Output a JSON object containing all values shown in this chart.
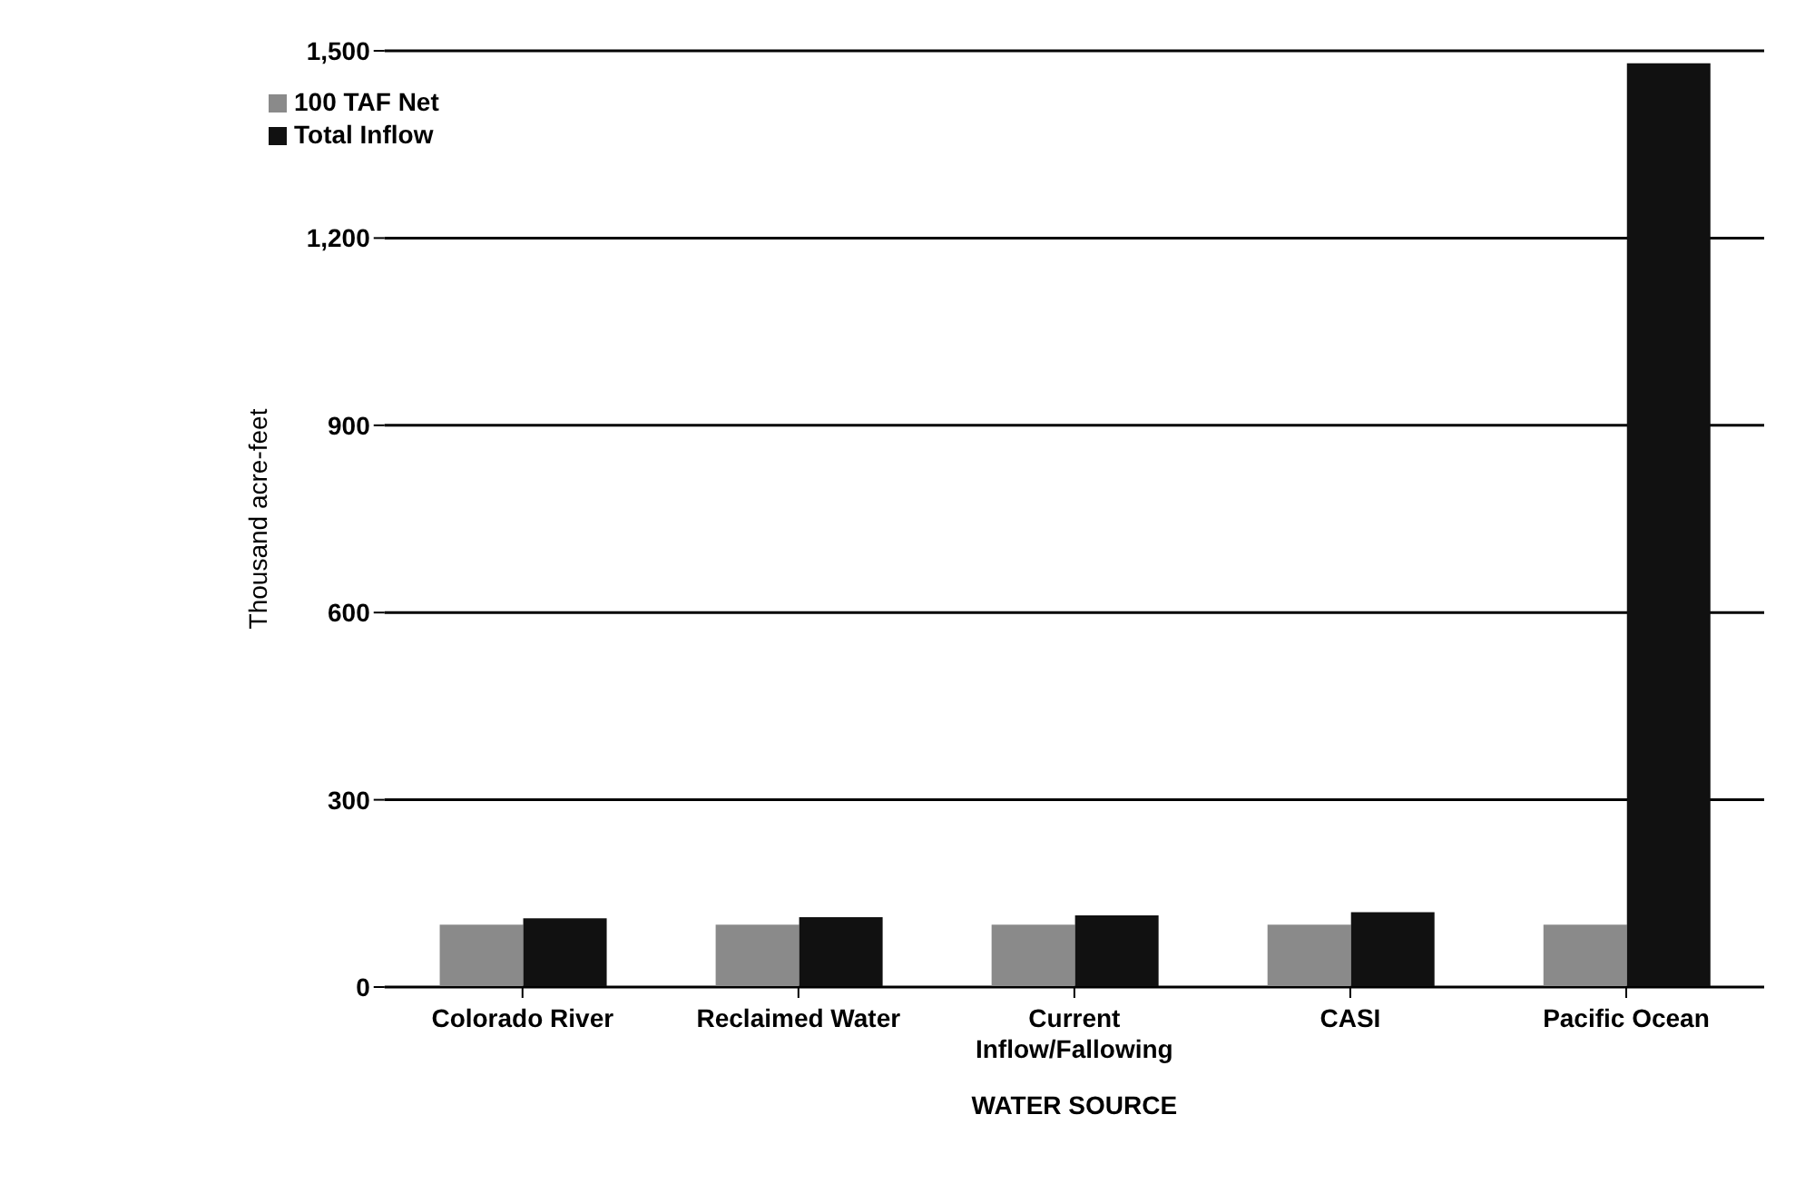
{
  "chart_data": {
    "type": "bar",
    "xlabel": "WATER SOURCE",
    "ylabel": "Thousand acre-feet",
    "categories": [
      "Colorado River",
      "Reclaimed Water",
      "Current Inflow/Fallowing",
      "CASI",
      "Pacific Ocean"
    ],
    "series": [
      {
        "name": "100 TAF Net",
        "color": "#8a8a8a",
        "values": [
          100,
          100,
          100,
          100,
          100
        ]
      },
      {
        "name": "Total Inflow",
        "color": "#111111",
        "values": [
          110,
          112,
          115,
          120,
          1480
        ]
      }
    ],
    "ylim": [
      0,
      1500
    ],
    "yticks": [
      {
        "value": 0,
        "label": "0"
      },
      {
        "value": 300,
        "label": "300"
      },
      {
        "value": 600,
        "label": "600"
      },
      {
        "value": 900,
        "label": "900"
      },
      {
        "value": 1200,
        "label": "1,200"
      },
      {
        "value": 1500,
        "label": "1,500"
      }
    ],
    "grid": "y",
    "legend": "top left"
  }
}
